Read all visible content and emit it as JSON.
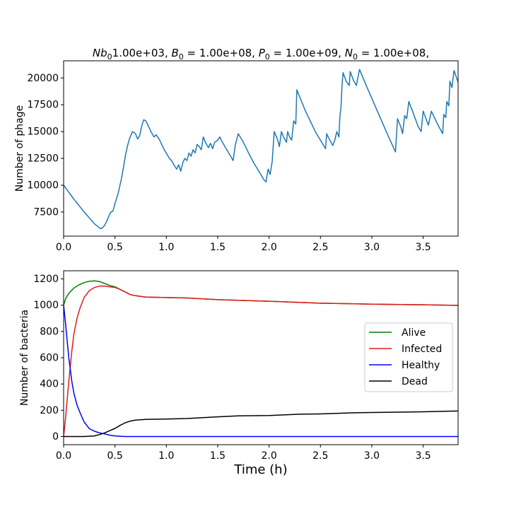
{
  "chart_data": [
    {
      "type": "line",
      "title": "Nb₀1.00e+03, B₀ = 1.00e+08, P₀ = 1.00e+09, N₀ = 1.00e+08,",
      "title_parts": [
        {
          "t": "Nb",
          "style": "italic"
        },
        {
          "t": "0",
          "style": "sub"
        },
        {
          "t": "1.00e+03, "
        },
        {
          "t": "B",
          "style": "italic"
        },
        {
          "t": "0",
          "style": "sub"
        },
        {
          "t": " = 1.00e+08, "
        },
        {
          "t": "P",
          "style": "italic"
        },
        {
          "t": "0",
          "style": "sub"
        },
        {
          "t": " = 1.00e+09, "
        },
        {
          "t": "N",
          "style": "italic"
        },
        {
          "t": "0",
          "style": "sub"
        },
        {
          "t": " = 1.00e+08,"
        }
      ],
      "xlabel": "",
      "ylabel": "Number of phage",
      "xlim": [
        0,
        3.84
      ],
      "ylim": [
        5250,
        21600
      ],
      "xticks": [
        0.0,
        0.5,
        1.0,
        1.5,
        2.0,
        2.5,
        3.0,
        3.5
      ],
      "xtick_labels": [
        "0.0",
        "0.5",
        "1.0",
        "1.5",
        "2.0",
        "2.5",
        "3.0",
        "3.5"
      ],
      "yticks": [
        7500,
        10000,
        12500,
        15000,
        17500,
        20000
      ],
      "ytick_labels": [
        "7500",
        "10000",
        "12500",
        "15000",
        "17500",
        "20000"
      ],
      "grid": false,
      "series": [
        {
          "color": "#1f77b4",
          "points": [
            [
              0.0,
              10000
            ],
            [
              0.1,
              8700
            ],
            [
              0.2,
              7500
            ],
            [
              0.3,
              6400
            ],
            [
              0.35,
              6000
            ],
            [
              0.37,
              5950
            ],
            [
              0.4,
              6250
            ],
            [
              0.42,
              6650
            ],
            [
              0.44,
              7100
            ],
            [
              0.46,
              7500
            ],
            [
              0.48,
              7600
            ],
            [
              0.5,
              8300
            ],
            [
              0.53,
              9200
            ],
            [
              0.56,
              10500
            ],
            [
              0.58,
              11500
            ],
            [
              0.6,
              12700
            ],
            [
              0.62,
              13600
            ],
            [
              0.64,
              14300
            ],
            [
              0.67,
              15000
            ],
            [
              0.7,
              14800
            ],
            [
              0.72,
              14300
            ],
            [
              0.74,
              14600
            ],
            [
              0.76,
              15500
            ],
            [
              0.78,
              16100
            ],
            [
              0.8,
              16000
            ],
            [
              0.82,
              15600
            ],
            [
              0.85,
              15000
            ],
            [
              0.88,
              14500
            ],
            [
              0.9,
              14700
            ],
            [
              0.93,
              14300
            ],
            [
              0.98,
              13300
            ],
            [
              1.03,
              12500
            ],
            [
              1.05,
              12300
            ],
            [
              1.08,
              11800
            ],
            [
              1.1,
              11500
            ],
            [
              1.12,
              11900
            ],
            [
              1.14,
              11300
            ],
            [
              1.16,
              12100
            ],
            [
              1.18,
              12500
            ],
            [
              1.2,
              12300
            ],
            [
              1.22,
              13000
            ],
            [
              1.24,
              12700
            ],
            [
              1.26,
              13300
            ],
            [
              1.28,
              13000
            ],
            [
              1.3,
              13800
            ],
            [
              1.32,
              13600
            ],
            [
              1.34,
              13300
            ],
            [
              1.36,
              14500
            ],
            [
              1.38,
              14000
            ],
            [
              1.41,
              13500
            ],
            [
              1.43,
              13900
            ],
            [
              1.45,
              13400
            ],
            [
              1.47,
              14000
            ],
            [
              1.5,
              14200
            ],
            [
              1.52,
              14500
            ],
            [
              1.54,
              14100
            ],
            [
              1.57,
              13600
            ],
            [
              1.62,
              12800
            ],
            [
              1.65,
              12300
            ],
            [
              1.67,
              13700
            ],
            [
              1.7,
              14800
            ],
            [
              1.75,
              14000
            ],
            [
              1.8,
              13000
            ],
            [
              1.85,
              12100
            ],
            [
              1.9,
              11300
            ],
            [
              1.95,
              10500
            ],
            [
              1.97,
              10300
            ],
            [
              1.99,
              11500
            ],
            [
              2.01,
              11000
            ],
            [
              2.03,
              12200
            ],
            [
              2.05,
              15000
            ],
            [
              2.08,
              14300
            ],
            [
              2.1,
              13600
            ],
            [
              2.12,
              15000
            ],
            [
              2.14,
              14500
            ],
            [
              2.17,
              14000
            ],
            [
              2.18,
              15000
            ],
            [
              2.2,
              14500
            ],
            [
              2.22,
              14200
            ],
            [
              2.24,
              16000
            ],
            [
              2.26,
              15700
            ],
            [
              2.27,
              18900
            ],
            [
              2.35,
              17000
            ],
            [
              2.45,
              15000
            ],
            [
              2.55,
              13400
            ],
            [
              2.56,
              14800
            ],
            [
              2.58,
              14400
            ],
            [
              2.62,
              13700
            ],
            [
              2.64,
              14200
            ],
            [
              2.66,
              15000
            ],
            [
              2.68,
              14500
            ],
            [
              2.69,
              16500
            ],
            [
              2.7,
              17200
            ],
            [
              2.71,
              19300
            ],
            [
              2.72,
              20500
            ],
            [
              2.75,
              19700
            ],
            [
              2.78,
              19300
            ],
            [
              2.79,
              20600
            ],
            [
              2.82,
              19800
            ],
            [
              2.85,
              19300
            ],
            [
              2.88,
              20800
            ],
            [
              2.95,
              19200
            ],
            [
              3.05,
              17000
            ],
            [
              3.15,
              14800
            ],
            [
              3.23,
              13100
            ],
            [
              3.25,
              16200
            ],
            [
              3.28,
              15500
            ],
            [
              3.3,
              14800
            ],
            [
              3.32,
              16500
            ],
            [
              3.34,
              16200
            ],
            [
              3.36,
              17800
            ],
            [
              3.4,
              16800
            ],
            [
              3.45,
              15500
            ],
            [
              3.48,
              15000
            ],
            [
              3.5,
              16900
            ],
            [
              3.55,
              15600
            ],
            [
              3.58,
              16900
            ],
            [
              3.65,
              15500
            ],
            [
              3.69,
              14800
            ],
            [
              3.7,
              16600
            ],
            [
              3.72,
              16300
            ],
            [
              3.73,
              17800
            ],
            [
              3.75,
              17400
            ],
            [
              3.76,
              19700
            ],
            [
              3.78,
              19100
            ],
            [
              3.8,
              20700
            ],
            [
              3.84,
              19600
            ],
            [
              3.87,
              18900
            ]
          ]
        }
      ]
    },
    {
      "type": "line",
      "title": "",
      "xlabel": "Time (h)",
      "ylabel": "Number of bacteria",
      "xlim": [
        0,
        3.84
      ],
      "ylim": [
        -62,
        1262
      ],
      "xticks": [
        0.0,
        0.5,
        1.0,
        1.5,
        2.0,
        2.5,
        3.0,
        3.5
      ],
      "xtick_labels": [
        "0.0",
        "0.5",
        "1.0",
        "1.5",
        "2.0",
        "2.5",
        "3.0",
        "3.5"
      ],
      "yticks": [
        0,
        200,
        400,
        600,
        800,
        1000,
        1200
      ],
      "ytick_labels": [
        "0",
        "200",
        "400",
        "600",
        "800",
        "1000",
        "1200"
      ],
      "grid": false,
      "legend_position": "center-right",
      "series": [
        {
          "name": "Alive",
          "color": "#008000",
          "points": [
            [
              0.0,
              1000
            ],
            [
              0.02,
              1050
            ],
            [
              0.05,
              1090
            ],
            [
              0.1,
              1130
            ],
            [
              0.15,
              1155
            ],
            [
              0.2,
              1172
            ],
            [
              0.25,
              1182
            ],
            [
              0.3,
              1185
            ],
            [
              0.35,
              1180
            ],
            [
              0.4,
              1165
            ],
            [
              0.45,
              1150
            ],
            [
              0.5,
              1140
            ],
            [
              0.55,
              1120
            ],
            [
              0.6,
              1100
            ],
            [
              0.65,
              1080
            ],
            [
              0.7,
              1072
            ],
            [
              0.8,
              1062
            ],
            [
              1.0,
              1058
            ],
            [
              1.2,
              1055
            ],
            [
              1.5,
              1042
            ],
            [
              2.0,
              1030
            ],
            [
              2.5,
              1015
            ],
            [
              3.0,
              1008
            ],
            [
              3.5,
              1003
            ],
            [
              3.9,
              997
            ]
          ]
        },
        {
          "name": "Infected",
          "color": "#e31a1c",
          "points": [
            [
              0.0,
              0
            ],
            [
              0.02,
              150
            ],
            [
              0.05,
              420
            ],
            [
              0.08,
              650
            ],
            [
              0.1,
              780
            ],
            [
              0.13,
              900
            ],
            [
              0.16,
              980
            ],
            [
              0.2,
              1060
            ],
            [
              0.25,
              1110
            ],
            [
              0.3,
              1135
            ],
            [
              0.35,
              1145
            ],
            [
              0.4,
              1145
            ],
            [
              0.45,
              1140
            ],
            [
              0.5,
              1135
            ],
            [
              0.55,
              1120
            ],
            [
              0.6,
              1100
            ],
            [
              0.65,
              1080
            ],
            [
              0.7,
              1072
            ],
            [
              0.8,
              1062
            ],
            [
              1.0,
              1058
            ],
            [
              1.2,
              1055
            ],
            [
              1.5,
              1042
            ],
            [
              2.0,
              1030
            ],
            [
              2.5,
              1015
            ],
            [
              3.0,
              1008
            ],
            [
              3.5,
              1003
            ],
            [
              3.9,
              997
            ]
          ]
        },
        {
          "name": "Healthy",
          "color": "#0000ff",
          "points": [
            [
              0.0,
              1000
            ],
            [
              0.02,
              850
            ],
            [
              0.05,
              600
            ],
            [
              0.08,
              420
            ],
            [
              0.1,
              330
            ],
            [
              0.13,
              240
            ],
            [
              0.16,
              180
            ],
            [
              0.2,
              110
            ],
            [
              0.25,
              60
            ],
            [
              0.3,
              40
            ],
            [
              0.35,
              28
            ],
            [
              0.4,
              20
            ],
            [
              0.45,
              10
            ],
            [
              0.5,
              5
            ],
            [
              0.55,
              2
            ],
            [
              0.6,
              0
            ],
            [
              1.0,
              0
            ],
            [
              2.0,
              0
            ],
            [
              3.0,
              0
            ],
            [
              3.9,
              0
            ]
          ]
        },
        {
          "name": "Dead",
          "color": "#000000",
          "points": [
            [
              0.0,
              0
            ],
            [
              0.2,
              0
            ],
            [
              0.3,
              5
            ],
            [
              0.35,
              15
            ],
            [
              0.4,
              28
            ],
            [
              0.45,
              45
            ],
            [
              0.5,
              62
            ],
            [
              0.55,
              85
            ],
            [
              0.6,
              105
            ],
            [
              0.65,
              118
            ],
            [
              0.7,
              125
            ],
            [
              0.8,
              130
            ],
            [
              1.0,
              133
            ],
            [
              1.2,
              137
            ],
            [
              1.5,
              150
            ],
            [
              1.7,
              157
            ],
            [
              2.0,
              160
            ],
            [
              2.3,
              170
            ],
            [
              2.5,
              172
            ],
            [
              2.8,
              180
            ],
            [
              3.0,
              183
            ],
            [
              3.5,
              188
            ],
            [
              3.9,
              195
            ]
          ]
        }
      ]
    }
  ]
}
